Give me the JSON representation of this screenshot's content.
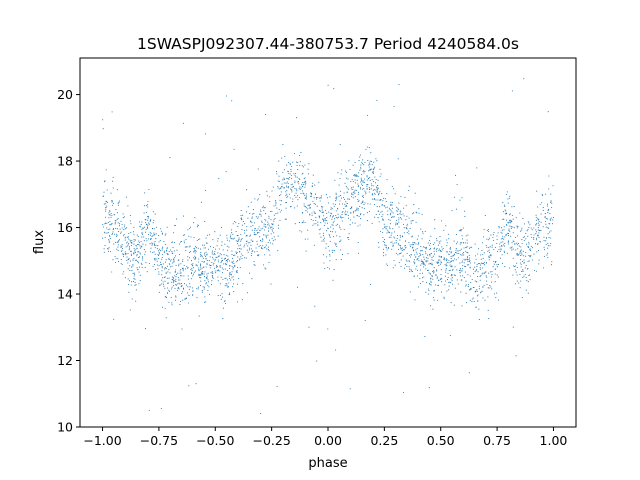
{
  "chart_data": {
    "type": "scatter",
    "title": "1SWASPJ092307.44-380753.7 Period 4240584.0s",
    "xlabel": "phase",
    "ylabel": "flux",
    "xlim": [
      -1.1,
      1.1
    ],
    "ylim": [
      10.0,
      21.1
    ],
    "x_ticks": [
      -1.0,
      -0.75,
      -0.5,
      -0.25,
      0.0,
      0.25,
      0.5,
      0.75,
      1.0
    ],
    "x_tick_labels": [
      "−1.00",
      "−0.75",
      "−0.50",
      "−0.25",
      "0.00",
      "0.25",
      "0.50",
      "0.75",
      "1.00"
    ],
    "y_ticks": [
      10,
      12,
      14,
      16,
      18,
      20
    ],
    "y_tick_labels": [
      "10",
      "12",
      "14",
      "16",
      "18",
      "20"
    ],
    "grid": false,
    "marker_color": "#1f77b4",
    "series": [
      {
        "description_of_trend": "phase-folded light curve, mirrored about phase 0",
        "profile": [
          {
            "x": 0.0,
            "y": 15.9
          },
          {
            "x": 0.05,
            "y": 16.4
          },
          {
            "x": 0.1,
            "y": 17.0
          },
          {
            "x": 0.15,
            "y": 17.3
          },
          {
            "x": 0.2,
            "y": 17.4
          },
          {
            "x": 0.25,
            "y": 16.0
          },
          {
            "x": 0.3,
            "y": 15.9
          },
          {
            "x": 0.35,
            "y": 15.6
          },
          {
            "x": 0.4,
            "y": 15.3
          },
          {
            "x": 0.45,
            "y": 14.7
          },
          {
            "x": 0.5,
            "y": 15.0
          },
          {
            "x": 0.55,
            "y": 14.8
          },
          {
            "x": 0.6,
            "y": 15.1
          },
          {
            "x": 0.65,
            "y": 14.5
          },
          {
            "x": 0.7,
            "y": 14.9
          },
          {
            "x": 0.75,
            "y": 15.0
          },
          {
            "x": 0.8,
            "y": 16.2
          },
          {
            "x": 0.85,
            "y": 15.0
          },
          {
            "x": 0.9,
            "y": 15.4
          },
          {
            "x": 0.95,
            "y": 16.2
          },
          {
            "x": 1.0,
            "y": 16.1
          }
        ]
      }
    ]
  }
}
